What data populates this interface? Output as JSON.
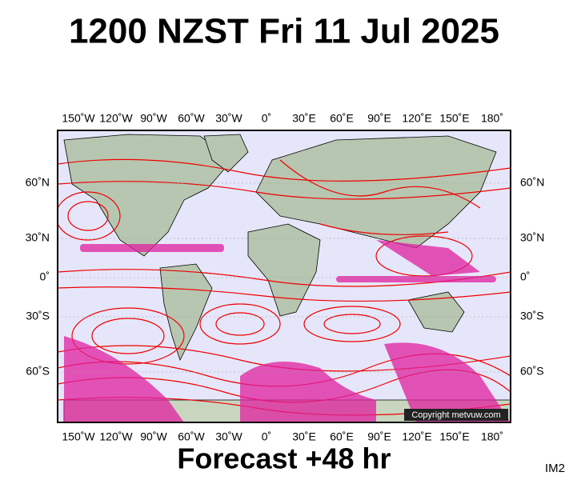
{
  "header": {
    "title": "1200 NZST Fri 11 Jul 2025"
  },
  "map": {
    "lon_labels": [
      "150˚W",
      "120˚W",
      "90˚W",
      "60˚W",
      "30˚W",
      "0˚",
      "30˚E",
      "60˚E",
      "90˚E",
      "120˚E",
      "150˚E",
      "180˚"
    ],
    "lat_labels": [
      "60˚N",
      "30˚N",
      "0˚",
      "30˚S",
      "60˚S"
    ],
    "copyright": "Copyright metvuw.com"
  },
  "footer": {
    "forecast": "Forecast +48 hr",
    "code": "IM2"
  }
}
